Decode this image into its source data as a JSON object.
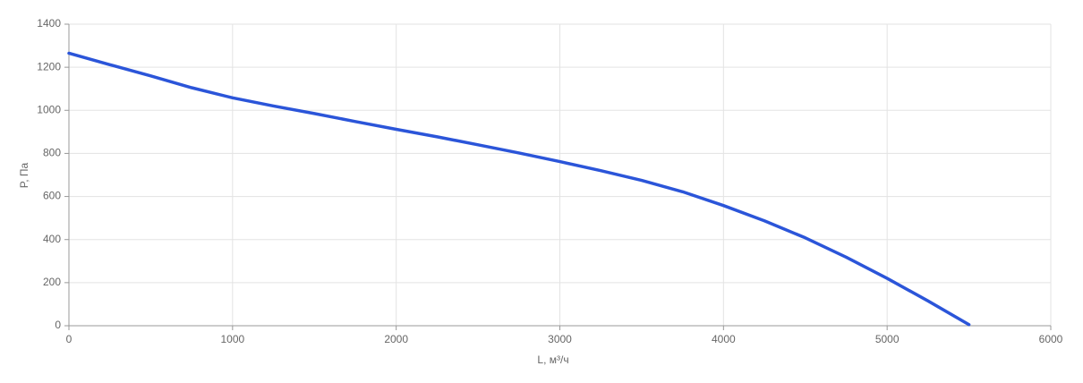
{
  "chart_data": {
    "type": "line",
    "xlabel": "L, м³/ч",
    "ylabel": "P, Па",
    "x": [
      0,
      250,
      500,
      750,
      1000,
      1250,
      1500,
      1750,
      2000,
      2250,
      2500,
      2750,
      3000,
      3250,
      3500,
      3750,
      4000,
      4250,
      4500,
      4750,
      5000,
      5250,
      5500
    ],
    "series": [
      {
        "color": "#2b55d9",
        "values": [
          1265,
          1212,
          1160,
          1105,
          1058,
          1020,
          985,
          948,
          912,
          877,
          840,
          802,
          762,
          720,
          675,
          622,
          558,
          487,
          408,
          318,
          220,
          115,
          5
        ]
      }
    ],
    "xlim": [
      0,
      6000
    ],
    "xticks": [
      0,
      1000,
      2000,
      3000,
      4000,
      5000,
      6000
    ],
    "ylim": [
      0,
      1400
    ],
    "yticks": [
      0,
      200,
      400,
      600,
      800,
      1000,
      1200,
      1400
    ],
    "grid": true
  }
}
